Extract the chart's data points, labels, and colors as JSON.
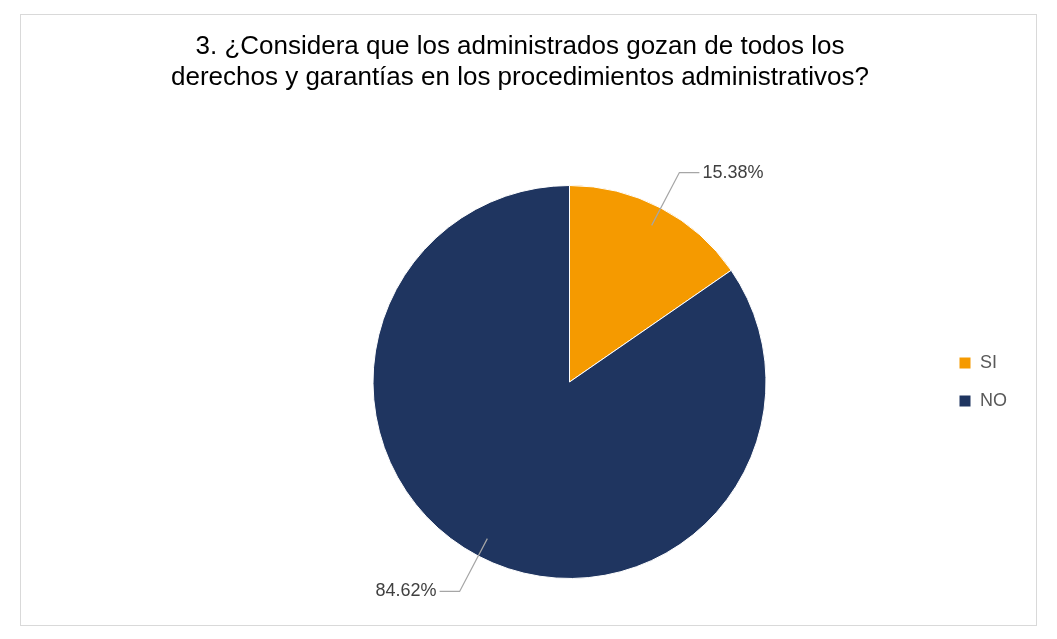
{
  "chart_data": {
    "type": "pie",
    "title": "3. ¿Considera que los administrados gozan de todos los derechos y garantías en los procedimientos administrativos?",
    "categories": [
      "SI",
      "NO"
    ],
    "values": [
      15.38,
      84.62
    ],
    "colors": [
      "#f59a00",
      "#1f3560"
    ],
    "value_labels": [
      "15.38%",
      "84.62%"
    ],
    "legend": "right"
  }
}
